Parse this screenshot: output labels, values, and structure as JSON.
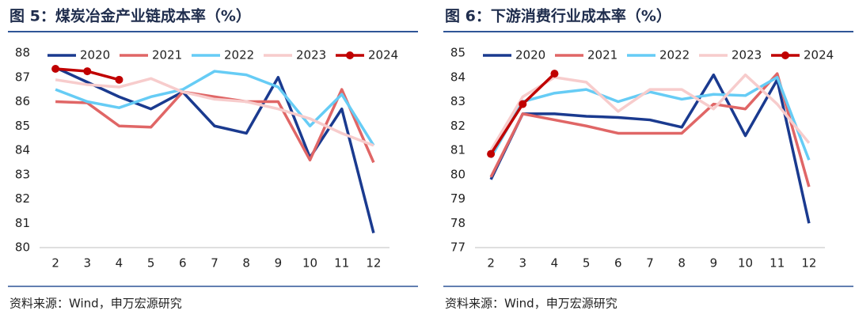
{
  "chart_data": [
    {
      "type": "line",
      "title": "图 5：煤炭冶金产业链成本率（%）",
      "source": "资料来源：Wind，申万宏源研究",
      "categories": [
        "2",
        "3",
        "4",
        "5",
        "6",
        "7",
        "8",
        "9",
        "10",
        "11",
        "12"
      ],
      "ylim": [
        80,
        88
      ],
      "yticks": [
        80,
        81,
        82,
        83,
        84,
        85,
        86,
        87,
        88
      ],
      "series": [
        {
          "name": "2020",
          "color": "#1a3a8f",
          "values": [
            87.4,
            86.8,
            86.2,
            85.7,
            86.4,
            85.0,
            84.7,
            87.0,
            83.7,
            85.7,
            80.6
          ]
        },
        {
          "name": "2021",
          "color": "#e06666",
          "values": [
            86.0,
            85.95,
            85.0,
            84.95,
            86.4,
            86.2,
            86.0,
            86.0,
            83.6,
            86.5,
            83.5
          ]
        },
        {
          "name": "2022",
          "color": "#66ccf5",
          "values": [
            86.5,
            86.0,
            85.75,
            86.2,
            86.5,
            87.25,
            87.1,
            86.6,
            85.0,
            86.3,
            84.2
          ]
        },
        {
          "name": "2023",
          "color": "#f7cccc",
          "values": [
            86.9,
            86.7,
            86.6,
            86.95,
            86.4,
            86.1,
            86.0,
            85.7,
            85.3,
            84.7,
            84.2
          ]
        },
        {
          "name": "2024",
          "color": "#c00000",
          "markers": true,
          "values": [
            87.35,
            87.25,
            86.9,
            null,
            null,
            null,
            null,
            null,
            null,
            null,
            null
          ]
        }
      ]
    },
    {
      "type": "line",
      "title": "图 6：下游消费行业成本率（%）",
      "source": "资料来源：Wind，申万宏源研究",
      "categories": [
        "2",
        "3",
        "4",
        "5",
        "6",
        "7",
        "8",
        "9",
        "10",
        "11",
        "12"
      ],
      "ylim": [
        77,
        85
      ],
      "yticks": [
        77,
        78,
        79,
        80,
        81,
        82,
        83,
        84,
        85
      ],
      "series": [
        {
          "name": "2020",
          "color": "#1a3a8f",
          "values": [
            79.8,
            82.5,
            82.5,
            82.4,
            82.35,
            82.25,
            81.95,
            84.1,
            81.6,
            83.9,
            78.0
          ]
        },
        {
          "name": "2021",
          "color": "#e06666",
          "values": [
            79.9,
            82.5,
            82.25,
            82.0,
            81.7,
            81.7,
            81.7,
            82.9,
            82.7,
            84.15,
            79.5
          ]
        },
        {
          "name": "2022",
          "color": "#66ccf5",
          "values": [
            80.7,
            83.0,
            83.35,
            83.5,
            83.0,
            83.4,
            83.1,
            83.3,
            83.25,
            84.0,
            80.6
          ]
        },
        {
          "name": "2023",
          "color": "#f7cccc",
          "values": [
            81.0,
            83.2,
            84.0,
            83.8,
            82.6,
            83.5,
            83.5,
            82.7,
            84.1,
            82.9,
            81.3
          ]
        },
        {
          "name": "2024",
          "color": "#c00000",
          "markers": true,
          "values": [
            80.85,
            82.9,
            84.15,
            null,
            null,
            null,
            null,
            null,
            null,
            null,
            null
          ]
        }
      ]
    }
  ]
}
